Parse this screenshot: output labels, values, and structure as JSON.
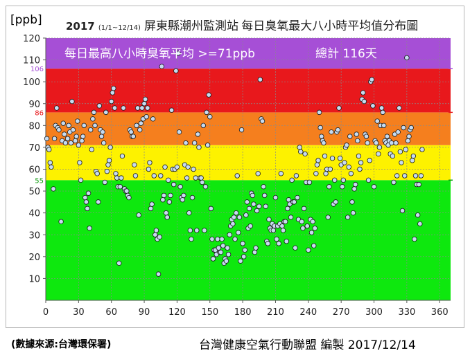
{
  "unit_label": "[ppb]",
  "title": {
    "year": "2017",
    "range": "(1/1~12/14)",
    "text": "屏東縣潮州監測站 每日臭氧最大八小時平均值分布圖"
  },
  "banner": {
    "left": "每日最高八小時臭氧平均 >=71ppb",
    "right": "總計 116天"
  },
  "footer": {
    "source": "(數據來源:台灣環保署)",
    "credit": "台灣健康空氣行動聯盟 編製 2017/12/14"
  },
  "colors": {
    "purple": "#a64fd6",
    "red": "#e8181c",
    "orange": "#f57f1e",
    "yellow": "#fdf200",
    "green": "#0ee80e",
    "point_fill": "#c7dbf0",
    "marker_106": "#a64fd6",
    "marker_86": "#e8181c",
    "marker_55": "#0a9a0a"
  },
  "chart_data": {
    "type": "scatter",
    "xlim": [
      0,
      370
    ],
    "ylim": [
      0,
      120
    ],
    "xticks": [
      0,
      30,
      60,
      90,
      120,
      150,
      180,
      210,
      240,
      270,
      300,
      330,
      360
    ],
    "yticks": [
      10,
      20,
      30,
      40,
      50,
      60,
      70,
      80,
      90,
      100,
      110,
      120
    ],
    "grid": true,
    "bands": [
      {
        "from": 0,
        "to": 55,
        "color": "green"
      },
      {
        "from": 55,
        "to": 71,
        "color": "yellow"
      },
      {
        "from": 71,
        "to": 86,
        "color": "orange"
      },
      {
        "from": 86,
        "to": 106,
        "color": "red"
      },
      {
        "from": 106,
        "to": 120,
        "color": "purple"
      }
    ],
    "threshold_labels": [
      {
        "value": 106,
        "text": "106",
        "color": "marker_106"
      },
      {
        "value": 86,
        "text": "86",
        "color": "marker_86"
      },
      {
        "value": 55,
        "text": "55",
        "color": "marker_55"
      }
    ],
    "points": [
      [
        1,
        74
      ],
      [
        2,
        70
      ],
      [
        3,
        69
      ],
      [
        4,
        63
      ],
      [
        5,
        61
      ],
      [
        7,
        51
      ],
      [
        8,
        74
      ],
      [
        9,
        80
      ],
      [
        10,
        88
      ],
      [
        11,
        79
      ],
      [
        12,
        78
      ],
      [
        14,
        36
      ],
      [
        15,
        73
      ],
      [
        16,
        81
      ],
      [
        17,
        76
      ],
      [
        18,
        72
      ],
      [
        20,
        74
      ],
      [
        21,
        80
      ],
      [
        22,
        77
      ],
      [
        23,
        72
      ],
      [
        24,
        91
      ],
      [
        25,
        78
      ],
      [
        27,
        73
      ],
      [
        28,
        75
      ],
      [
        29,
        82
      ],
      [
        30,
        71
      ],
      [
        31,
        63
      ],
      [
        32,
        55
      ],
      [
        33,
        73
      ],
      [
        34,
        75
      ],
      [
        35,
        80
      ],
      [
        36,
        47
      ],
      [
        37,
        45
      ],
      [
        38,
        42
      ],
      [
        39,
        49
      ],
      [
        40,
        33
      ],
      [
        41,
        78
      ],
      [
        42,
        69
      ],
      [
        43,
        83
      ],
      [
        44,
        86
      ],
      [
        45,
        80
      ],
      [
        46,
        59
      ],
      [
        47,
        58
      ],
      [
        48,
        45
      ],
      [
        49,
        89
      ],
      [
        50,
        78
      ],
      [
        51,
        75
      ],
      [
        52,
        77
      ],
      [
        53,
        72
      ],
      [
        54,
        54
      ],
      [
        55,
        86
      ],
      [
        56,
        59
      ],
      [
        57,
        62
      ],
      [
        58,
        64
      ],
      [
        59,
        70
      ],
      [
        60,
        91
      ],
      [
        61,
        95
      ],
      [
        62,
        97
      ],
      [
        63,
        88
      ],
      [
        64,
        58
      ],
      [
        65,
        56
      ],
      [
        66,
        52
      ],
      [
        67,
        17
      ],
      [
        68,
        52
      ],
      [
        69,
        56
      ],
      [
        70,
        66
      ],
      [
        71,
        88
      ],
      [
        72,
        51
      ],
      [
        73,
        50
      ],
      [
        74,
        50
      ],
      [
        75,
        48
      ],
      [
        76,
        47
      ],
      [
        77,
        78
      ],
      [
        78,
        77
      ],
      [
        79,
        75
      ],
      [
        80,
        75
      ],
      [
        81,
        62
      ],
      [
        82,
        57
      ],
      [
        83,
        80
      ],
      [
        84,
        88
      ],
      [
        85,
        39
      ],
      [
        86,
        78
      ],
      [
        87,
        81
      ],
      [
        88,
        88
      ],
      [
        89,
        83
      ],
      [
        90,
        90
      ],
      [
        91,
        92
      ],
      [
        92,
        84
      ],
      [
        93,
        88
      ],
      [
        94,
        60
      ],
      [
        95,
        63
      ],
      [
        96,
        42
      ],
      [
        97,
        44
      ],
      [
        98,
        83
      ],
      [
        99,
        57
      ],
      [
        100,
        30
      ],
      [
        101,
        32
      ],
      [
        102,
        28
      ],
      [
        103,
        12
      ],
      [
        104,
        29
      ],
      [
        105,
        57
      ],
      [
        106,
        107
      ],
      [
        107,
        46
      ],
      [
        108,
        48
      ],
      [
        109,
        61
      ],
      [
        110,
        40
      ],
      [
        111,
        38
      ],
      [
        112,
        55
      ],
      [
        113,
        45
      ],
      [
        114,
        48
      ],
      [
        115,
        87
      ],
      [
        116,
        60
      ],
      [
        117,
        53
      ],
      [
        118,
        60
      ],
      [
        119,
        105
      ],
      [
        120,
        61
      ],
      [
        121,
        113
      ],
      [
        122,
        77
      ],
      [
        123,
        52
      ],
      [
        124,
        47
      ],
      [
        125,
        46
      ],
      [
        126,
        48
      ],
      [
        127,
        62
      ],
      [
        128,
        72
      ],
      [
        129,
        56
      ],
      [
        130,
        61
      ],
      [
        131,
        40
      ],
      [
        132,
        32
      ],
      [
        133,
        28
      ],
      [
        134,
        47
      ],
      [
        135,
        60
      ],
      [
        136,
        72
      ],
      [
        137,
        56
      ],
      [
        138,
        32
      ],
      [
        139,
        76
      ],
      [
        140,
        70
      ],
      [
        141,
        56
      ],
      [
        142,
        56
      ],
      [
        143,
        54
      ],
      [
        144,
        80
      ],
      [
        145,
        32
      ],
      [
        146,
        52
      ],
      [
        147,
        86
      ],
      [
        148,
        71
      ],
      [
        149,
        94
      ],
      [
        150,
        84
      ],
      [
        151,
        42
      ],
      [
        152,
        28
      ],
      [
        153,
        19
      ],
      [
        154,
        23
      ],
      [
        155,
        23
      ],
      [
        156,
        21
      ],
      [
        157,
        28
      ],
      [
        158,
        24
      ],
      [
        159,
        22
      ],
      [
        160,
        22
      ],
      [
        161,
        28
      ],
      [
        162,
        25
      ],
      [
        163,
        17
      ],
      [
        164,
        19
      ],
      [
        165,
        18
      ],
      [
        166,
        24
      ],
      [
        167,
        21
      ],
      [
        168,
        30
      ],
      [
        169,
        34
      ],
      [
        170,
        37
      ],
      [
        171,
        35
      ],
      [
        172,
        38
      ],
      [
        173,
        28
      ],
      [
        174,
        40
      ],
      [
        175,
        57
      ],
      [
        176,
        31
      ],
      [
        177,
        38
      ],
      [
        178,
        18
      ],
      [
        179,
        78
      ],
      [
        180,
        26
      ],
      [
        181,
        20
      ],
      [
        182,
        23
      ],
      [
        183,
        39
      ],
      [
        184,
        45
      ],
      [
        185,
        33
      ],
      [
        186,
        42
      ],
      [
        187,
        34
      ],
      [
        188,
        49
      ],
      [
        189,
        48
      ],
      [
        190,
        44
      ],
      [
        191,
        22
      ],
      [
        192,
        24
      ],
      [
        193,
        41
      ],
      [
        194,
        58
      ],
      [
        195,
        43
      ],
      [
        196,
        101
      ],
      [
        197,
        83
      ],
      [
        198,
        82
      ],
      [
        199,
        52
      ],
      [
        200,
        48
      ],
      [
        201,
        43
      ],
      [
        202,
        27
      ],
      [
        203,
        26
      ],
      [
        204,
        37
      ],
      [
        205,
        33
      ],
      [
        206,
        32
      ],
      [
        207,
        35
      ],
      [
        208,
        32
      ],
      [
        209,
        34
      ],
      [
        210,
        47
      ],
      [
        211,
        28
      ],
      [
        212,
        34
      ],
      [
        213,
        26
      ],
      [
        214,
        35
      ],
      [
        215,
        58
      ],
      [
        216,
        34
      ],
      [
        217,
        32
      ],
      [
        218,
        36
      ],
      [
        219,
        36
      ],
      [
        220,
        27
      ],
      [
        221,
        42
      ],
      [
        222,
        46
      ],
      [
        223,
        44
      ],
      [
        224,
        38
      ],
      [
        225,
        55
      ],
      [
        226,
        45
      ],
      [
        227,
        45
      ],
      [
        228,
        24
      ],
      [
        229,
        57
      ],
      [
        230,
        47
      ],
      [
        231,
        37
      ],
      [
        232,
        70
      ],
      [
        233,
        68
      ],
      [
        234,
        36
      ],
      [
        235,
        33
      ],
      [
        236,
        42
      ],
      [
        237,
        67
      ],
      [
        238,
        54
      ],
      [
        239,
        34
      ],
      [
        240,
        23
      ],
      [
        241,
        54
      ],
      [
        242,
        37
      ],
      [
        243,
        31
      ],
      [
        244,
        36
      ],
      [
        245,
        25
      ],
      [
        246,
        33
      ],
      [
        247,
        58
      ],
      [
        248,
        62
      ],
      [
        249,
        64
      ],
      [
        250,
        86
      ],
      [
        251,
        79
      ],
      [
        252,
        75
      ],
      [
        253,
        73
      ],
      [
        254,
        72
      ],
      [
        255,
        66
      ],
      [
        256,
        58
      ],
      [
        257,
        60
      ],
      [
        258,
        38
      ],
      [
        259,
        52
      ],
      [
        260,
        60
      ],
      [
        261,
        77
      ],
      [
        262,
        65
      ],
      [
        263,
        44
      ],
      [
        264,
        55
      ],
      [
        265,
        45
      ],
      [
        266,
        77
      ],
      [
        267,
        78
      ],
      [
        268,
        88
      ],
      [
        269,
        65
      ],
      [
        270,
        62
      ],
      [
        271,
        52
      ],
      [
        272,
        55
      ],
      [
        273,
        63
      ],
      [
        274,
        70
      ],
      [
        275,
        71
      ],
      [
        276,
        38
      ],
      [
        277,
        61
      ],
      [
        278,
        75
      ],
      [
        279,
        58
      ],
      [
        280,
        45
      ],
      [
        281,
        40
      ],
      [
        282,
        51
      ],
      [
        283,
        53
      ],
      [
        284,
        76
      ],
      [
        285,
        73
      ],
      [
        286,
        66
      ],
      [
        287,
        60
      ],
      [
        288,
        63
      ],
      [
        289,
        92
      ],
      [
        290,
        95
      ],
      [
        291,
        91
      ],
      [
        292,
        76
      ],
      [
        293,
        75
      ],
      [
        294,
        72
      ],
      [
        295,
        55
      ],
      [
        296,
        64
      ],
      [
        297,
        100
      ],
      [
        298,
        101
      ],
      [
        299,
        89
      ],
      [
        300,
        52
      ],
      [
        301,
        73
      ],
      [
        302,
        72
      ],
      [
        303,
        82
      ],
      [
        304,
        67
      ],
      [
        305,
        70
      ],
      [
        306,
        80
      ],
      [
        307,
        88
      ],
      [
        308,
        86
      ],
      [
        309,
        80
      ],
      [
        310,
        73
      ],
      [
        311,
        72
      ],
      [
        312,
        75
      ],
      [
        313,
        71
      ],
      [
        314,
        73
      ],
      [
        315,
        67
      ],
      [
        316,
        72
      ],
      [
        317,
        66
      ],
      [
        318,
        54
      ],
      [
        319,
        76
      ],
      [
        320,
        72
      ],
      [
        321,
        57
      ],
      [
        322,
        77
      ],
      [
        323,
        88
      ],
      [
        324,
        68
      ],
      [
        325,
        63
      ],
      [
        326,
        41
      ],
      [
        327,
        79
      ],
      [
        328,
        57
      ],
      [
        329,
        69
      ],
      [
        330,
        111
      ],
      [
        331,
        73
      ],
      [
        332,
        75
      ],
      [
        333,
        78
      ],
      [
        334,
        79
      ],
      [
        335,
        64
      ],
      [
        336,
        66
      ],
      [
        337,
        28
      ],
      [
        338,
        57
      ],
      [
        339,
        53
      ],
      [
        340,
        39
      ],
      [
        341,
        53
      ],
      [
        342,
        35
      ],
      [
        343,
        57
      ],
      [
        344,
        69
      ]
    ]
  }
}
